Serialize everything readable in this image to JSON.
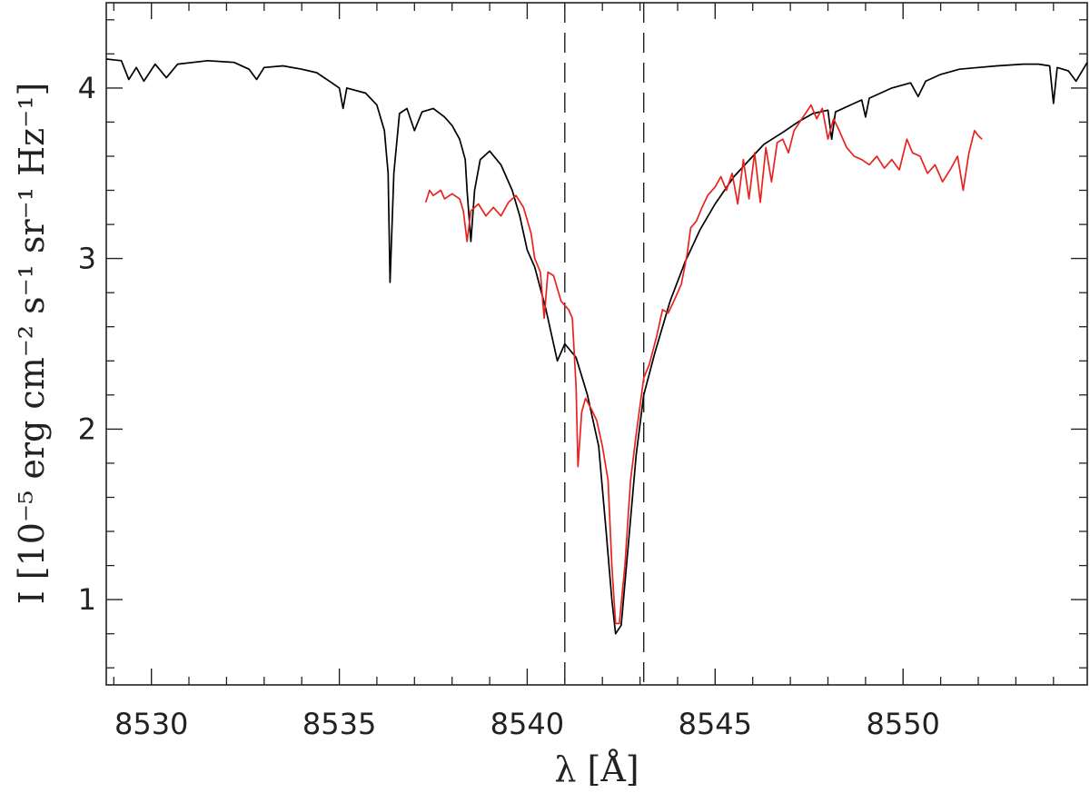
{
  "chart_data": {
    "type": "line",
    "xlabel": "λ [Å]",
    "ylabel": "I [10⁻⁵ erg cm⁻² s⁻¹ sr⁻¹ Hz⁻¹]",
    "xlim": [
      8528.8,
      8554.9
    ],
    "ylim": [
      0.5,
      4.5
    ],
    "x_ticks": [
      8530,
      8535,
      8540,
      8545,
      8550
    ],
    "x_tick_labels": [
      "8530",
      "8535",
      "8540",
      "8545",
      "8550"
    ],
    "y_ticks": [
      1,
      2,
      3,
      4
    ],
    "y_tick_labels": [
      "1",
      "2",
      "3",
      "4"
    ],
    "grid": false,
    "legend": "none",
    "vlines": [
      8541.0,
      8543.1
    ],
    "series": [
      {
        "color": "#000000",
        "points": [
          [
            8528.8,
            4.17
          ],
          [
            8529.2,
            4.16
          ],
          [
            8529.4,
            4.05
          ],
          [
            8529.6,
            4.12
          ],
          [
            8529.8,
            4.04
          ],
          [
            8530.1,
            4.14
          ],
          [
            8530.4,
            4.06
          ],
          [
            8530.7,
            4.14
          ],
          [
            8531.5,
            4.16
          ],
          [
            8532.2,
            4.15
          ],
          [
            8532.6,
            4.11
          ],
          [
            8532.8,
            4.05
          ],
          [
            8533.0,
            4.12
          ],
          [
            8533.5,
            4.13
          ],
          [
            8534.0,
            4.11
          ],
          [
            8534.4,
            4.09
          ],
          [
            8534.8,
            4.03
          ],
          [
            8535.0,
            4.0
          ],
          [
            8535.1,
            3.88
          ],
          [
            8535.2,
            4.0
          ],
          [
            8535.7,
            3.97
          ],
          [
            8536.0,
            3.9
          ],
          [
            8536.2,
            3.75
          ],
          [
            8536.3,
            3.5
          ],
          [
            8536.35,
            2.86
          ],
          [
            8536.45,
            3.5
          ],
          [
            8536.6,
            3.85
          ],
          [
            8536.8,
            3.88
          ],
          [
            8537.0,
            3.75
          ],
          [
            8537.2,
            3.86
          ],
          [
            8537.5,
            3.88
          ],
          [
            8537.8,
            3.83
          ],
          [
            8538.0,
            3.78
          ],
          [
            8538.2,
            3.7
          ],
          [
            8538.35,
            3.58
          ],
          [
            8538.4,
            3.4
          ],
          [
            8538.5,
            3.1
          ],
          [
            8538.6,
            3.4
          ],
          [
            8538.75,
            3.58
          ],
          [
            8539.0,
            3.63
          ],
          [
            8539.3,
            3.55
          ],
          [
            8539.6,
            3.4
          ],
          [
            8539.8,
            3.25
          ],
          [
            8540.0,
            3.05
          ],
          [
            8540.2,
            2.95
          ],
          [
            8540.5,
            2.7
          ],
          [
            8540.7,
            2.5
          ],
          [
            8540.8,
            2.4
          ],
          [
            8541.0,
            2.5
          ],
          [
            8541.3,
            2.42
          ],
          [
            8541.6,
            2.2
          ],
          [
            8541.9,
            1.9
          ],
          [
            8542.1,
            1.4
          ],
          [
            8542.25,
            1.0
          ],
          [
            8542.35,
            0.8
          ],
          [
            8542.5,
            0.85
          ],
          [
            8542.7,
            1.35
          ],
          [
            8542.9,
            1.85
          ],
          [
            8543.1,
            2.2
          ],
          [
            8543.4,
            2.45
          ],
          [
            8543.8,
            2.75
          ],
          [
            8544.2,
            2.98
          ],
          [
            8544.6,
            3.17
          ],
          [
            8545.0,
            3.32
          ],
          [
            8545.5,
            3.48
          ],
          [
            8546.0,
            3.6
          ],
          [
            8546.3,
            3.67
          ],
          [
            8546.8,
            3.74
          ],
          [
            8547.2,
            3.8
          ],
          [
            8547.6,
            3.85
          ],
          [
            8548.0,
            3.87
          ],
          [
            8548.1,
            3.7
          ],
          [
            8548.2,
            3.86
          ],
          [
            8548.6,
            3.9
          ],
          [
            8548.9,
            3.93
          ],
          [
            8549.0,
            3.83
          ],
          [
            8549.1,
            3.94
          ],
          [
            8549.4,
            3.97
          ],
          [
            8549.7,
            4.0
          ],
          [
            8550.2,
            4.03
          ],
          [
            8550.4,
            3.95
          ],
          [
            8550.6,
            4.04
          ],
          [
            8551.0,
            4.08
          ],
          [
            8551.5,
            4.11
          ],
          [
            8552.0,
            4.12
          ],
          [
            8552.5,
            4.13
          ],
          [
            8553.2,
            4.14
          ],
          [
            8553.6,
            4.14
          ],
          [
            8553.9,
            4.13
          ],
          [
            8554.0,
            3.91
          ],
          [
            8554.1,
            4.12
          ],
          [
            8554.4,
            4.1
          ],
          [
            8554.6,
            4.04
          ],
          [
            8554.9,
            4.15
          ]
        ]
      },
      {
        "color": "#e8231e",
        "points": [
          [
            8537.3,
            3.33
          ],
          [
            8537.4,
            3.4
          ],
          [
            8537.5,
            3.37
          ],
          [
            8537.7,
            3.4
          ],
          [
            8537.8,
            3.35
          ],
          [
            8538.0,
            3.38
          ],
          [
            8538.2,
            3.35
          ],
          [
            8538.3,
            3.28
          ],
          [
            8538.4,
            3.1
          ],
          [
            8538.5,
            3.28
          ],
          [
            8538.7,
            3.32
          ],
          [
            8538.9,
            3.25
          ],
          [
            8539.1,
            3.3
          ],
          [
            8539.3,
            3.25
          ],
          [
            8539.5,
            3.33
          ],
          [
            8539.7,
            3.37
          ],
          [
            8539.9,
            3.3
          ],
          [
            8540.1,
            3.15
          ],
          [
            8540.2,
            3.0
          ],
          [
            8540.35,
            2.92
          ],
          [
            8540.45,
            2.65
          ],
          [
            8540.55,
            2.92
          ],
          [
            8540.7,
            2.9
          ],
          [
            8540.9,
            2.75
          ],
          [
            8541.1,
            2.7
          ],
          [
            8541.2,
            2.65
          ],
          [
            8541.3,
            2.25
          ],
          [
            8541.35,
            1.78
          ],
          [
            8541.45,
            2.1
          ],
          [
            8541.55,
            2.18
          ],
          [
            8541.7,
            2.12
          ],
          [
            8541.85,
            2.05
          ],
          [
            8542.0,
            1.9
          ],
          [
            8542.15,
            1.7
          ],
          [
            8542.25,
            1.2
          ],
          [
            8542.35,
            0.86
          ],
          [
            8542.45,
            0.86
          ],
          [
            8542.6,
            1.2
          ],
          [
            8542.75,
            1.7
          ],
          [
            8542.9,
            1.97
          ],
          [
            8543.1,
            2.3
          ],
          [
            8543.25,
            2.38
          ],
          [
            8543.45,
            2.55
          ],
          [
            8543.6,
            2.7
          ],
          [
            8543.75,
            2.68
          ],
          [
            8543.9,
            2.75
          ],
          [
            8544.1,
            2.85
          ],
          [
            8544.25,
            3.02
          ],
          [
            8544.35,
            3.18
          ],
          [
            8544.5,
            3.22
          ],
          [
            8544.65,
            3.3
          ],
          [
            8544.8,
            3.37
          ],
          [
            8545.0,
            3.42
          ],
          [
            8545.15,
            3.48
          ],
          [
            8545.3,
            3.4
          ],
          [
            8545.45,
            3.5
          ],
          [
            8545.6,
            3.32
          ],
          [
            8545.75,
            3.58
          ],
          [
            8545.9,
            3.35
          ],
          [
            8546.05,
            3.62
          ],
          [
            8546.2,
            3.33
          ],
          [
            8546.35,
            3.65
          ],
          [
            8546.5,
            3.45
          ],
          [
            8546.65,
            3.68
          ],
          [
            8546.8,
            3.7
          ],
          [
            8546.95,
            3.62
          ],
          [
            8547.1,
            3.75
          ],
          [
            8547.25,
            3.8
          ],
          [
            8547.4,
            3.85
          ],
          [
            8547.55,
            3.9
          ],
          [
            8547.7,
            3.82
          ],
          [
            8547.85,
            3.88
          ],
          [
            8548.0,
            3.7
          ],
          [
            8548.15,
            3.82
          ],
          [
            8548.3,
            3.75
          ],
          [
            8548.5,
            3.65
          ],
          [
            8548.7,
            3.6
          ],
          [
            8548.9,
            3.58
          ],
          [
            8549.1,
            3.55
          ],
          [
            8549.3,
            3.6
          ],
          [
            8549.5,
            3.53
          ],
          [
            8549.7,
            3.58
          ],
          [
            8549.9,
            3.52
          ],
          [
            8550.1,
            3.7
          ],
          [
            8550.25,
            3.62
          ],
          [
            8550.45,
            3.6
          ],
          [
            8550.65,
            3.5
          ],
          [
            8550.85,
            3.55
          ],
          [
            8551.05,
            3.45
          ],
          [
            8551.25,
            3.52
          ],
          [
            8551.45,
            3.6
          ],
          [
            8551.6,
            3.4
          ],
          [
            8551.75,
            3.62
          ],
          [
            8551.9,
            3.75
          ],
          [
            8552.0,
            3.72
          ],
          [
            8552.1,
            3.7
          ]
        ]
      }
    ]
  }
}
